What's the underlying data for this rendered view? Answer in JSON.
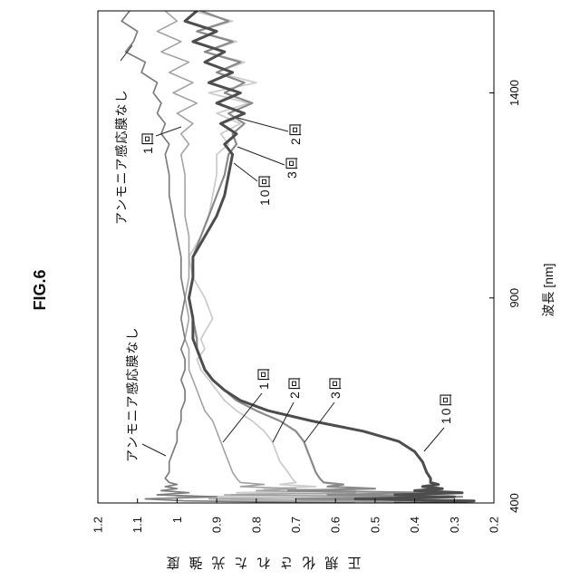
{
  "chart_data": {
    "type": "line",
    "title": "FIG.6",
    "xlabel": "波長 [nm]",
    "ylabel": "正規化された光強度",
    "xlim": [
      400,
      1600
    ],
    "ylim": [
      0.2,
      1.2
    ],
    "xticks": [
      400,
      900,
      1400
    ],
    "xtick_labels": [
      "400",
      "900",
      "1400"
    ],
    "yticks": [
      1.2,
      1.1,
      1.0,
      0.9,
      0.8,
      0.7,
      0.6,
      0.5,
      0.4,
      0.3,
      0.2
    ],
    "ytick_labels": [
      "1.2",
      "1.1",
      "1",
      "0.9",
      "0.8",
      "0.7",
      "0.6",
      "0.5",
      "0.4",
      "0.3",
      "0.2"
    ],
    "grid": false,
    "legend": "none",
    "x": [
      400,
      405,
      410,
      415,
      420,
      425,
      430,
      435,
      440,
      445,
      450,
      460,
      475,
      500,
      525,
      550,
      575,
      600,
      625,
      650,
      675,
      700,
      725,
      750,
      775,
      800,
      850,
      900,
      950,
      1000,
      1050,
      1100,
      1150,
      1200,
      1250,
      1275,
      1300,
      1325,
      1350,
      1375,
      1400,
      1425,
      1450,
      1475,
      1500,
      1525,
      1550,
      1575,
      1600
    ],
    "series": [
      {
        "name": "アンモニア感応膜なし",
        "color": "#7d7d7d",
        "values": [
          0.55,
          0.98,
          1.08,
          0.9,
          1.05,
          0.97,
          1.04,
          1.0,
          1.03,
          1.0,
          1.02,
          1.03,
          1.02,
          1.02,
          1.01,
          1.0,
          1.0,
          0.99,
          0.99,
          0.98,
          0.98,
          0.99,
          0.98,
          0.98,
          0.99,
          0.98,
          0.99,
          0.98,
          0.99,
          0.99,
          1.0,
          1.01,
          1.02,
          1.02,
          1.03,
          1.02,
          1.04,
          1.03,
          1.05,
          1.04,
          1.06,
          1.05,
          1.09,
          1.08,
          1.13,
          1.11,
          1.1,
          1.14,
          1.12
        ]
      },
      {
        "name": "1回",
        "color": "#a3a3a3",
        "values": [
          0.32,
          0.6,
          0.92,
          0.45,
          0.88,
          0.55,
          0.8,
          0.7,
          0.84,
          0.78,
          0.84,
          0.85,
          0.86,
          0.87,
          0.88,
          0.89,
          0.9,
          0.91,
          0.93,
          0.94,
          0.95,
          0.96,
          0.97,
          0.97,
          0.97,
          0.98,
          0.97,
          0.98,
          0.97,
          0.97,
          0.97,
          0.98,
          0.98,
          0.98,
          0.99,
          0.97,
          0.99,
          0.96,
          1.0,
          0.95,
          1.01,
          0.96,
          1.02,
          0.97,
          1.04,
          0.99,
          1.05,
          1.0,
          1.03
        ]
      },
      {
        "name": "2回",
        "color": "#cdcdcd",
        "values": [
          0.27,
          0.9,
          0.4,
          1.0,
          0.48,
          0.85,
          0.55,
          0.78,
          0.65,
          0.74,
          0.7,
          0.71,
          0.72,
          0.74,
          0.75,
          0.76,
          0.78,
          0.81,
          0.85,
          0.88,
          0.9,
          0.92,
          0.94,
          0.95,
          0.93,
          0.94,
          0.91,
          0.93,
          0.96,
          0.97,
          0.94,
          0.92,
          0.91,
          0.9,
          0.9,
          0.87,
          0.89,
          0.84,
          0.9,
          0.82,
          0.92,
          0.8,
          0.9,
          0.83,
          0.93,
          0.85,
          0.95,
          0.86,
          0.96
        ]
      },
      {
        "name": "3回",
        "color": "#8a8a8a",
        "values": [
          0.4,
          0.3,
          0.7,
          0.28,
          0.62,
          0.35,
          0.72,
          0.5,
          0.62,
          0.58,
          0.63,
          0.64,
          0.65,
          0.66,
          0.67,
          0.68,
          0.7,
          0.74,
          0.8,
          0.85,
          0.88,
          0.91,
          0.93,
          0.94,
          0.95,
          0.95,
          0.96,
          0.97,
          0.96,
          0.96,
          0.94,
          0.92,
          0.9,
          0.88,
          0.87,
          0.85,
          0.86,
          0.83,
          0.87,
          0.81,
          0.88,
          0.83,
          0.9,
          0.84,
          0.93,
          0.86,
          0.95,
          0.87,
          0.94
        ]
      },
      {
        "name": "10回",
        "color": "#4d4d4d",
        "values": [
          0.45,
          0.25,
          0.55,
          0.3,
          0.45,
          0.28,
          0.4,
          0.33,
          0.38,
          0.34,
          0.36,
          0.36,
          0.37,
          0.38,
          0.4,
          0.44,
          0.53,
          0.66,
          0.77,
          0.84,
          0.88,
          0.91,
          0.93,
          0.94,
          0.95,
          0.96,
          0.96,
          0.97,
          0.96,
          0.96,
          0.93,
          0.9,
          0.88,
          0.87,
          0.86,
          0.88,
          0.85,
          0.89,
          0.83,
          0.9,
          0.84,
          0.92,
          0.86,
          0.93,
          0.88,
          0.96,
          0.9,
          0.98,
          0.95
        ]
      }
    ]
  }
}
